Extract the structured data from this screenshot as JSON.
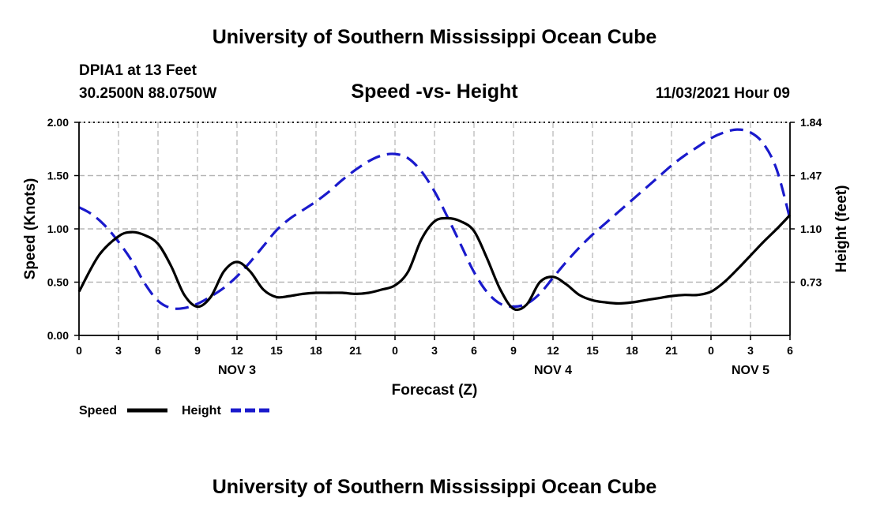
{
  "header": {
    "title": "University of Southern Mississippi Ocean Cube",
    "station": "DPIA1 at 13 Feet",
    "coords": "30.2500N  88.0750W",
    "chart_title": "Speed -vs- Height",
    "datetime": "11/03/2021 Hour 09"
  },
  "footer": {
    "title": "University of Southern Mississippi Ocean Cube"
  },
  "chart_data": {
    "type": "line",
    "title": "Speed -vs- Height",
    "xlabel": "Forecast (Z)",
    "ylabel": "Speed (Knots)",
    "y2label": "Height (feet)",
    "x_range": [
      0,
      54
    ],
    "ylim": [
      0,
      2
    ],
    "y2lim": [
      0.36,
      1.84
    ],
    "x_tick_values": [
      0,
      3,
      6,
      9,
      12,
      15,
      18,
      21,
      24,
      27,
      30,
      33,
      36,
      39,
      42,
      45,
      48,
      51,
      54
    ],
    "x_tick_labels": [
      "0",
      "3",
      "6",
      "9",
      "12",
      "15",
      "18",
      "21",
      "0",
      "3",
      "6",
      "9",
      "12",
      "15",
      "18",
      "21",
      "0",
      "3",
      "6"
    ],
    "y_ticks": [
      "0.00",
      "0.50",
      "1.00",
      "1.50",
      "2.00"
    ],
    "y2_ticks": [
      "0.73",
      "1.10",
      "1.47",
      "1.84"
    ],
    "day_labels": [
      {
        "label": "NOV 3",
        "x": 12
      },
      {
        "label": "NOV 4",
        "x": 36
      },
      {
        "label": "NOV 5",
        "x": 51
      }
    ],
    "grid": true,
    "legend_position": "bottom-left",
    "series": [
      {
        "name": "Speed",
        "axis": "left",
        "color": "#000000",
        "dash": "solid",
        "x": [
          0,
          1.5,
          3,
          4,
          5,
          6,
          7,
          8,
          9,
          10,
          11,
          12,
          13,
          14,
          15,
          16,
          17,
          18,
          19,
          20,
          21,
          22,
          23,
          24,
          25,
          26,
          27,
          28,
          29,
          30,
          31,
          32,
          33,
          34,
          35,
          36,
          37,
          38,
          39,
          40,
          41,
          42,
          43,
          44,
          45,
          46,
          47,
          48,
          49,
          50,
          51,
          52,
          53,
          54
        ],
        "values": [
          0.41,
          0.75,
          0.93,
          0.97,
          0.94,
          0.86,
          0.65,
          0.38,
          0.27,
          0.36,
          0.6,
          0.69,
          0.6,
          0.43,
          0.36,
          0.37,
          0.39,
          0.4,
          0.4,
          0.4,
          0.39,
          0.4,
          0.43,
          0.47,
          0.6,
          0.9,
          1.07,
          1.1,
          1.07,
          0.98,
          0.72,
          0.43,
          0.25,
          0.29,
          0.5,
          0.55,
          0.48,
          0.38,
          0.33,
          0.31,
          0.3,
          0.31,
          0.33,
          0.35,
          0.37,
          0.38,
          0.38,
          0.41,
          0.5,
          0.62,
          0.75,
          0.88,
          1.0,
          1.13
        ]
      },
      {
        "name": "Height",
        "axis": "right",
        "color": "#1a1acc",
        "dash": "dashed",
        "x": [
          0,
          1,
          2,
          3,
          4,
          5,
          6,
          7,
          8,
          9,
          10,
          11,
          12,
          13,
          14,
          15,
          16,
          17,
          18,
          19,
          20,
          21,
          22,
          23,
          24,
          25,
          26,
          27,
          28,
          29,
          30,
          31,
          32,
          33,
          34,
          35,
          36,
          37,
          38,
          39,
          40,
          41,
          42,
          43,
          44,
          45,
          46,
          47,
          48,
          49,
          50,
          51,
          52,
          53,
          54
        ],
        "values": [
          1.25,
          1.2,
          1.12,
          1.01,
          0.88,
          0.72,
          0.6,
          0.55,
          0.55,
          0.58,
          0.63,
          0.69,
          0.77,
          0.87,
          0.98,
          1.09,
          1.17,
          1.23,
          1.29,
          1.36,
          1.44,
          1.51,
          1.57,
          1.61,
          1.62,
          1.59,
          1.5,
          1.36,
          1.18,
          0.99,
          0.8,
          0.66,
          0.58,
          0.56,
          0.58,
          0.65,
          0.76,
          0.87,
          0.97,
          1.06,
          1.14,
          1.22,
          1.3,
          1.38,
          1.46,
          1.54,
          1.61,
          1.67,
          1.73,
          1.77,
          1.79,
          1.77,
          1.69,
          1.51,
          1.17
        ]
      }
    ]
  }
}
